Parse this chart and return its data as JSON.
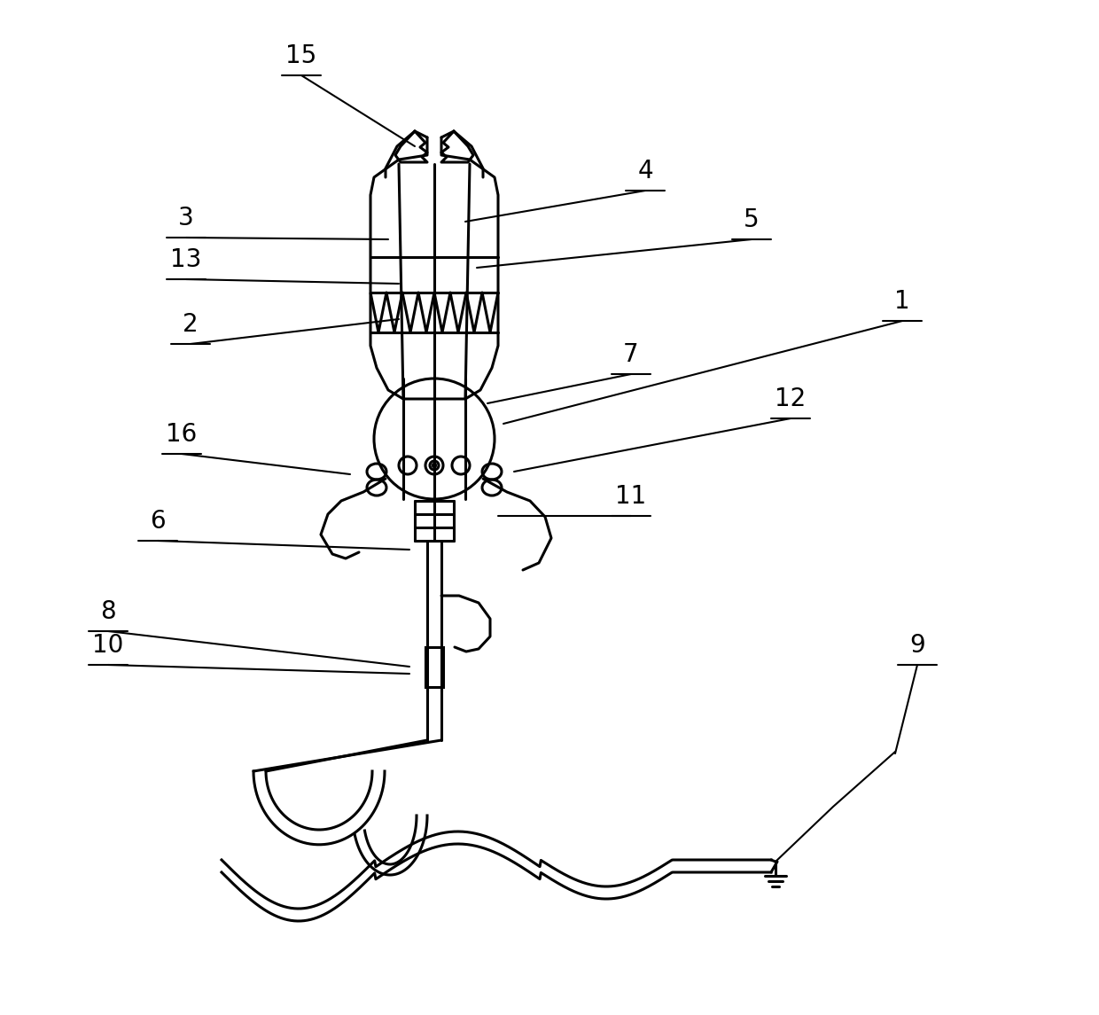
{
  "bg_color": "#ffffff",
  "lc": "#000000",
  "lw": 2.2,
  "lw_thin": 1.5,
  "fw": 12.4,
  "fh": 11.45,
  "dpi": 100
}
